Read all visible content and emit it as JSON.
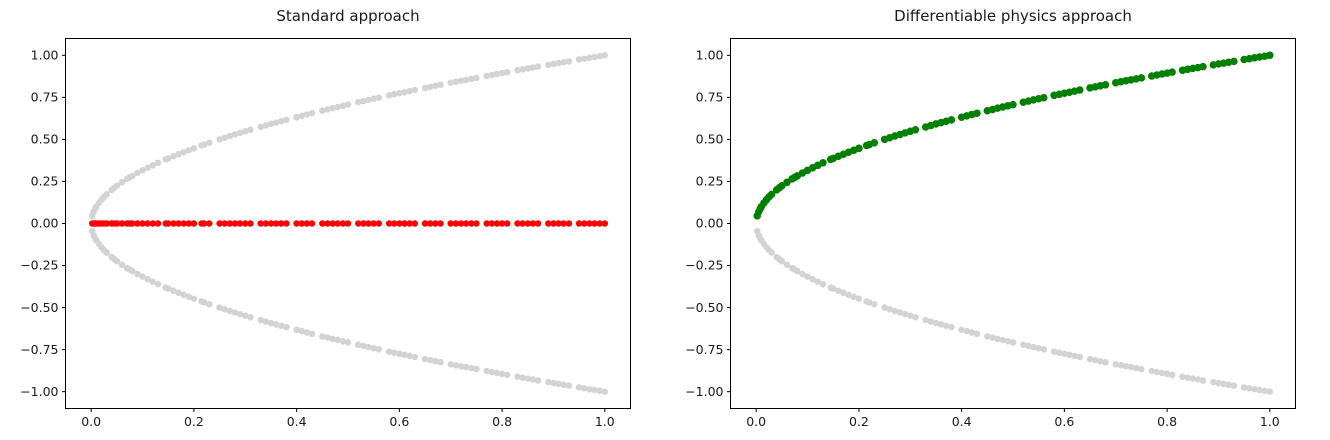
{
  "chart_data": [
    {
      "type": "scatter",
      "title": "Standard approach",
      "xlabel": "",
      "ylabel": "",
      "xlim": [
        -0.05,
        1.05
      ],
      "ylim": [
        -1.1,
        1.1
      ],
      "grid": false,
      "legend": "none",
      "xtick_values": [
        0.0,
        0.2,
        0.4,
        0.6,
        0.8,
        1.0
      ],
      "xtick_labels": [
        "0.0",
        "0.2",
        "0.4",
        "0.6",
        "0.8",
        "1.0"
      ],
      "ytick_values": [
        1.0,
        0.75,
        0.5,
        0.25,
        0.0,
        -0.25,
        -0.5,
        -0.75,
        -1.0
      ],
      "ytick_labels": [
        "1.00",
        "0.75",
        "0.50",
        "0.25",
        "0.00",
        "−0.25",
        "−0.50",
        "−0.75",
        "−1.00"
      ],
      "series": [
        {
          "name": "data-points-upper-branch",
          "color": "#d3d3d3",
          "marker_size": 6.5,
          "y_transform": "sqrt"
        },
        {
          "name": "data-points-lower-branch",
          "color": "#d3d3d3",
          "marker_size": 6.5,
          "y_transform": "neg_sqrt"
        },
        {
          "name": "standard-prediction-points",
          "color": "#ff0000",
          "marker_size": 6.5,
          "y_transform": "zero"
        }
      ]
    },
    {
      "type": "scatter",
      "title": "Differentiable physics approach",
      "xlabel": "",
      "ylabel": "",
      "xlim": [
        -0.05,
        1.05
      ],
      "ylim": [
        -1.1,
        1.1
      ],
      "grid": false,
      "legend": "none",
      "xtick_values": [
        0.0,
        0.2,
        0.4,
        0.6,
        0.8,
        1.0
      ],
      "xtick_labels": [
        "0.0",
        "0.2",
        "0.4",
        "0.6",
        "0.8",
        "1.0"
      ],
      "ytick_values": [
        1.0,
        0.75,
        0.5,
        0.25,
        0.0,
        -0.25,
        -0.5,
        -0.75,
        -1.0
      ],
      "ytick_labels": [
        "1.00",
        "0.75",
        "0.50",
        "0.25",
        "0.00",
        "−0.25",
        "−0.50",
        "−0.75",
        "−1.00"
      ],
      "series": [
        {
          "name": "data-points-lower-branch",
          "color": "#d3d3d3",
          "marker_size": 6.5,
          "y_transform": "neg_sqrt"
        },
        {
          "name": "diffphysics-solution-points",
          "color": "#008000",
          "marker_size": 7.5,
          "y_transform": "sqrt"
        }
      ]
    }
  ],
  "samples": {
    "note": "scatter sample x positions; curves are y = sqrt(x), y = -sqrt(x), y = 0",
    "x": [
      0.002,
      0.005,
      0.008,
      0.01,
      0.015,
      0.02,
      0.025,
      0.03,
      0.04,
      0.045,
      0.05,
      0.06,
      0.07,
      0.075,
      0.08,
      0.09,
      0.1,
      0.11,
      0.12,
      0.13,
      0.145,
      0.15,
      0.16,
      0.17,
      0.18,
      0.19,
      0.2,
      0.215,
      0.22,
      0.23,
      0.25,
      0.26,
      0.27,
      0.28,
      0.29,
      0.3,
      0.31,
      0.33,
      0.34,
      0.35,
      0.36,
      0.37,
      0.38,
      0.4,
      0.41,
      0.42,
      0.43,
      0.45,
      0.46,
      0.47,
      0.48,
      0.49,
      0.5,
      0.52,
      0.53,
      0.54,
      0.55,
      0.56,
      0.58,
      0.59,
      0.6,
      0.61,
      0.62,
      0.63,
      0.65,
      0.66,
      0.67,
      0.68,
      0.7,
      0.71,
      0.72,
      0.73,
      0.74,
      0.75,
      0.77,
      0.78,
      0.79,
      0.8,
      0.81,
      0.83,
      0.84,
      0.85,
      0.86,
      0.87,
      0.89,
      0.9,
      0.91,
      0.92,
      0.93,
      0.95,
      0.96,
      0.97,
      0.98,
      0.99,
      1.0
    ],
    "sqrt_x": [
      0.045,
      0.071,
      0.089,
      0.1,
      0.122,
      0.141,
      0.158,
      0.173,
      0.2,
      0.212,
      0.224,
      0.245,
      0.265,
      0.274,
      0.283,
      0.3,
      0.316,
      0.332,
      0.346,
      0.361,
      0.381,
      0.387,
      0.4,
      0.412,
      0.424,
      0.436,
      0.447,
      0.464,
      0.469,
      0.48,
      0.5,
      0.51,
      0.52,
      0.529,
      0.539,
      0.548,
      0.557,
      0.574,
      0.583,
      0.592,
      0.6,
      0.608,
      0.616,
      0.632,
      0.64,
      0.648,
      0.656,
      0.671,
      0.678,
      0.686,
      0.693,
      0.7,
      0.707,
      0.721,
      0.728,
      0.735,
      0.742,
      0.748,
      0.762,
      0.768,
      0.775,
      0.781,
      0.787,
      0.794,
      0.806,
      0.812,
      0.819,
      0.825,
      0.837,
      0.843,
      0.849,
      0.854,
      0.86,
      0.866,
      0.877,
      0.883,
      0.889,
      0.894,
      0.9,
      0.911,
      0.917,
      0.922,
      0.927,
      0.933,
      0.943,
      0.949,
      0.954,
      0.959,
      0.964,
      0.975,
      0.98,
      0.985,
      0.99,
      0.995,
      1.0
    ]
  }
}
